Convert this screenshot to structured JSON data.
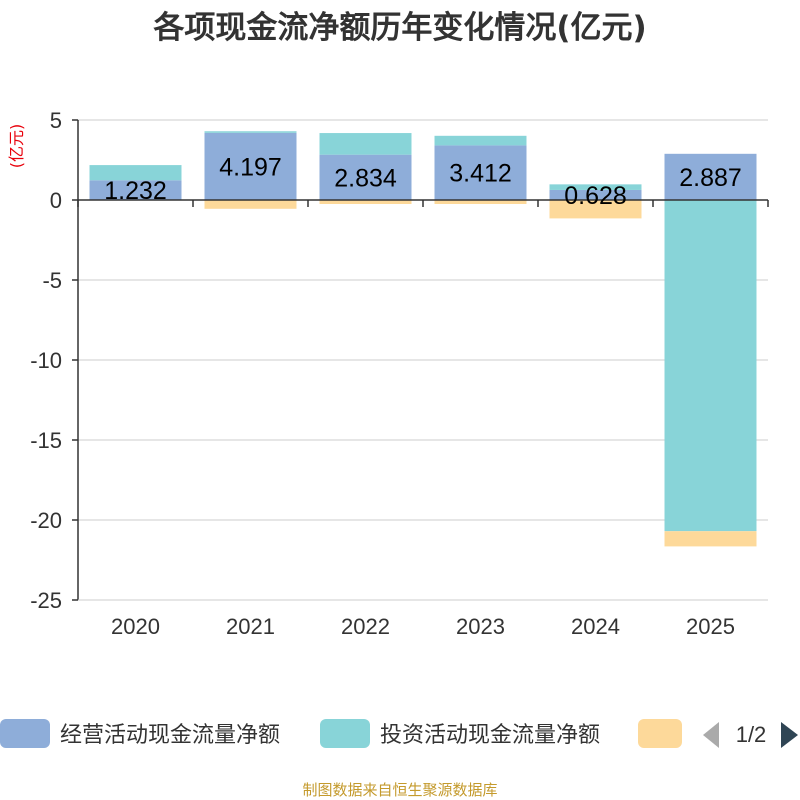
{
  "chart_data": {
    "type": "bar",
    "stacked": true,
    "title": "各项现金流净额历年变化情况(亿元)",
    "ylabel": "(亿元)",
    "xlabel": "",
    "categories": [
      "2020",
      "2021",
      "2022",
      "2023",
      "2024",
      "2025"
    ],
    "ylim": [
      -25,
      5
    ],
    "yticks": [
      5,
      0,
      -5,
      -10,
      -15,
      -20,
      -25
    ],
    "grid": true,
    "series": [
      {
        "name": "经营活动现金流量净额",
        "color": "#8eadd9",
        "values": [
          1.232,
          4.197,
          2.834,
          3.412,
          0.628,
          2.887
        ],
        "labels": [
          "1.232",
          "4.197",
          "2.834",
          "3.412",
          "0.628",
          "2.887"
        ]
      },
      {
        "name": "投资活动现金流量净额",
        "color": "#88d4d8",
        "values": [
          0.95,
          0.1,
          1.35,
          0.6,
          0.35,
          -20.7
        ]
      },
      {
        "name": "",
        "color": "#fdd99a",
        "values": [
          0,
          -0.55,
          -0.25,
          -0.25,
          -1.15,
          -0.95
        ]
      }
    ],
    "legend": {
      "position": "bottom",
      "page": "1/2"
    },
    "source": "制图数据来自恒生聚源数据库"
  }
}
